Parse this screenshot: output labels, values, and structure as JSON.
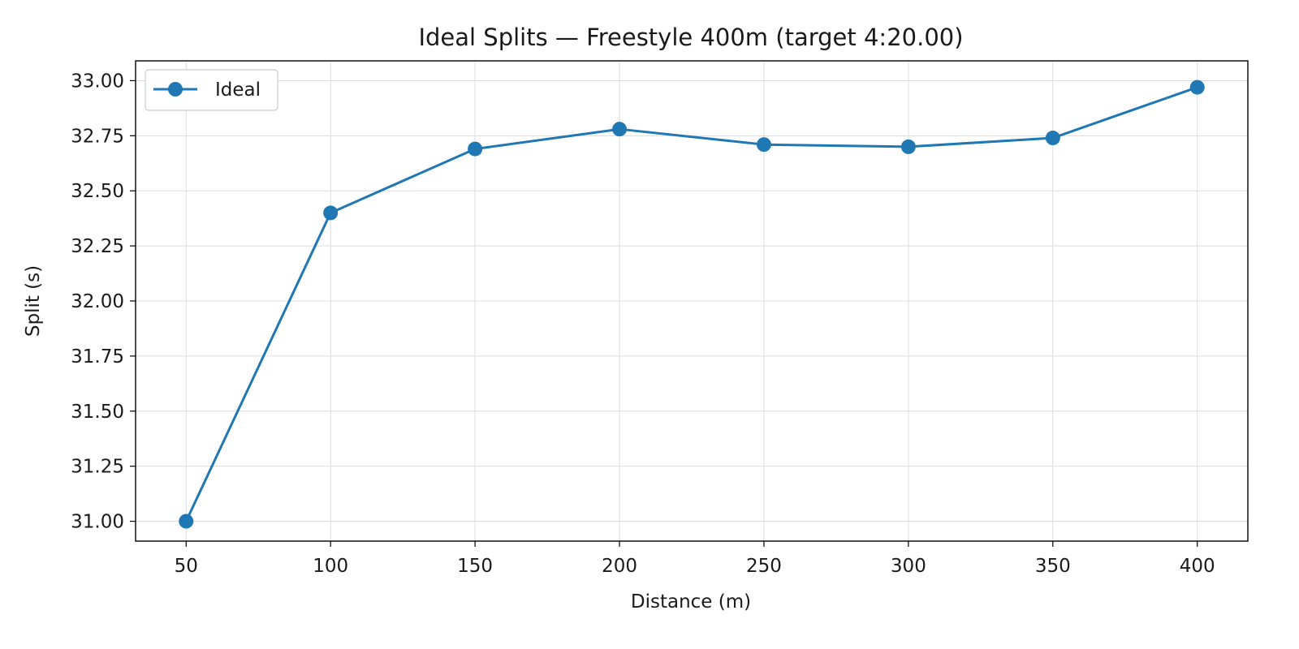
{
  "chart_data": {
    "type": "line",
    "title": "Ideal Splits — Freestyle 400m (target 4:20.00)",
    "xlabel": "Distance (m)",
    "ylabel": "Split (s)",
    "x": [
      50,
      100,
      150,
      200,
      250,
      300,
      350,
      400
    ],
    "xticks": [
      "50",
      "100",
      "150",
      "200",
      "250",
      "300",
      "350",
      "400"
    ],
    "yticks": [
      "31.00",
      "31.25",
      "31.50",
      "31.75",
      "32.00",
      "32.25",
      "32.50",
      "32.75",
      "33.00"
    ],
    "xlim": [
      32.5,
      417.5
    ],
    "ylim": [
      30.91,
      33.09
    ],
    "grid": true,
    "legend_position": "upper-left",
    "series": [
      {
        "name": "Ideal",
        "color": "#1f77b4",
        "marker": "circle",
        "values": [
          31.0,
          32.4,
          32.69,
          32.78,
          32.71,
          32.7,
          32.74,
          32.97
        ]
      }
    ]
  }
}
